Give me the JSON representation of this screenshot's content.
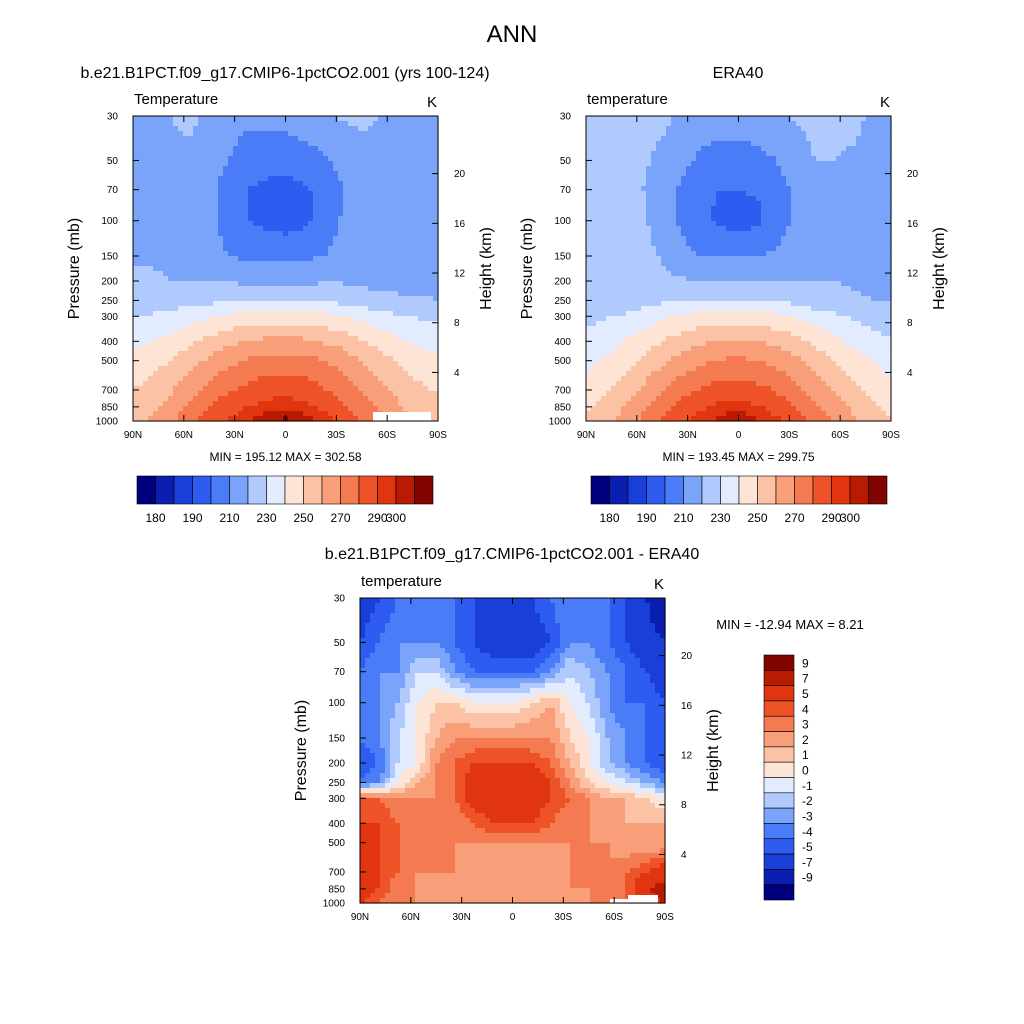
{
  "page_title": "ANN",
  "colors": {
    "temp_palette": [
      "#00007f",
      "#0a1fb0",
      "#1a3fd9",
      "#2e5bf0",
      "#4a7cf7",
      "#7aa3fa",
      "#b1cafd",
      "#e2ecfe",
      "#fde4d4",
      "#fbc2a5",
      "#f89e78",
      "#f47a52",
      "#ee5327",
      "#e0350e",
      "#b81b02",
      "#820400"
    ],
    "diff_palette": [
      "#00007f",
      "#0a1fb0",
      "#1a3fd9",
      "#2e5bf0",
      "#4a7cf7",
      "#7aa3fa",
      "#b1cafd",
      "#e2ecfe",
      "#fde4d4",
      "#fbc2a5",
      "#f89e78",
      "#f47a52",
      "#ee5327",
      "#e0350e",
      "#b81b02",
      "#820400"
    ]
  },
  "chart_data": [
    {
      "id": "model",
      "type": "heatmap",
      "title": "b.e21.B1PCT.f09_g17.CMIP6-1pctCO2.001 (yrs 100-124)",
      "left_label": "Temperature",
      "units": "K",
      "ylabel": "Pressure (mb)",
      "ylabel_right": "Height (km)",
      "xticks": [
        "90N",
        "60N",
        "30N",
        "0",
        "30S",
        "60S",
        "90S"
      ],
      "yticks": [
        "30",
        "50",
        "70",
        "100",
        "150",
        "200",
        "250",
        "300",
        "400",
        "500",
        "700",
        "850",
        "1000"
      ],
      "yticks_right": [
        "20",
        "16",
        "12",
        "8",
        "4"
      ],
      "stats": "MIN = 195.12  MAX = 302.58",
      "levels": [
        180,
        185,
        190,
        200,
        210,
        220,
        230,
        240,
        250,
        260,
        270,
        280,
        290,
        295,
        300
      ],
      "colorbar_labels": [
        "180",
        "190",
        "210",
        "230",
        "250",
        "270",
        "290",
        "300"
      ],
      "min": 195.12,
      "max": 302.58,
      "grid": [
        [
          217,
          219,
          220,
          221,
          219,
          215,
          212,
          213,
          214,
          216,
          218,
          221,
          221,
          220,
          219,
          214,
          212
        ],
        [
          218,
          219,
          219,
          219,
          215,
          210,
          205,
          203,
          203,
          205,
          208,
          214,
          218,
          218,
          216,
          213,
          211
        ],
        [
          219,
          219,
          219,
          217,
          213,
          205,
          200,
          198,
          197,
          199,
          202,
          210,
          216,
          217,
          215,
          213,
          211
        ],
        [
          219,
          219,
          220,
          219,
          214,
          205,
          200,
          197,
          196,
          198,
          203,
          211,
          217,
          217,
          215,
          214,
          212
        ],
        [
          219,
          219,
          219,
          218,
          215,
          210,
          208,
          207,
          207,
          208,
          210,
          214,
          217,
          217,
          216,
          215,
          214
        ],
        [
          222,
          221,
          220,
          220,
          219,
          219,
          218,
          218,
          218,
          218,
          219,
          219,
          218,
          218,
          218,
          218,
          218
        ],
        [
          224,
          224,
          225,
          226,
          227,
          229,
          230,
          230,
          230,
          230,
          229,
          227,
          224,
          222,
          221,
          221,
          220
        ],
        [
          230,
          231,
          233,
          236,
          239,
          242,
          244,
          245,
          245,
          245,
          243,
          240,
          237,
          234,
          231,
          229,
          228
        ],
        [
          238,
          240,
          243,
          248,
          253,
          257,
          260,
          262,
          262,
          262,
          259,
          256,
          251,
          246,
          241,
          238,
          236
        ],
        [
          243,
          246,
          250,
          256,
          262,
          267,
          271,
          273,
          274,
          273,
          270,
          266,
          260,
          254,
          248,
          245,
          242
        ],
        [
          250,
          254,
          259,
          266,
          273,
          279,
          283,
          286,
          287,
          285,
          281,
          276,
          270,
          263,
          256,
          252,
          249
        ],
        [
          254,
          258,
          264,
          272,
          280,
          286,
          290,
          293,
          294,
          292,
          288,
          282,
          275,
          268,
          261,
          255,
          252
        ],
        [
          256,
          261,
          268,
          277,
          285,
          291,
          295,
          299,
          302,
          298,
          294,
          287,
          280,
          272,
          265,
          258,
          254
        ]
      ]
    },
    {
      "id": "obs",
      "type": "heatmap",
      "title": "ERA40",
      "left_label": "temperature",
      "units": "K",
      "ylabel": "Pressure (mb)",
      "ylabel_right": "Height (km)",
      "xticks": [
        "90N",
        "60N",
        "30N",
        "0",
        "30S",
        "60S",
        "90S"
      ],
      "yticks": [
        "30",
        "50",
        "70",
        "100",
        "150",
        "200",
        "250",
        "300",
        "400",
        "500",
        "700",
        "850",
        "1000"
      ],
      "yticks_right": [
        "20",
        "16",
        "12",
        "8",
        "4"
      ],
      "stats": "MIN = 193.45  MAX = 299.75",
      "levels": [
        180,
        185,
        190,
        200,
        210,
        220,
        230,
        240,
        250,
        260,
        270,
        280,
        290,
        295,
        300
      ],
      "colorbar_labels": [
        "180",
        "190",
        "210",
        "230",
        "250",
        "270",
        "290",
        "300"
      ],
      "min": 193.45,
      "max": 299.75,
      "grid": [
        [
          223,
          224,
          224,
          223,
          222,
          219,
          216,
          215,
          215,
          216,
          218,
          221,
          222,
          222,
          222,
          219,
          215
        ],
        [
          222,
          222,
          222,
          221,
          218,
          213,
          208,
          206,
          206,
          207,
          210,
          216,
          220,
          220,
          219,
          217,
          214
        ],
        [
          221,
          221,
          221,
          220,
          215,
          208,
          203,
          200,
          200,
          201,
          205,
          212,
          219,
          219,
          218,
          216,
          213
        ],
        [
          221,
          222,
          223,
          221,
          216,
          208,
          202,
          198,
          196,
          198,
          204,
          212,
          219,
          219,
          218,
          217,
          214
        ],
        [
          222,
          226,
          227,
          223,
          219,
          213,
          210,
          209,
          209,
          210,
          212,
          216,
          219,
          219,
          218,
          217,
          216
        ],
        [
          222,
          224,
          226,
          224,
          222,
          221,
          220,
          220,
          220,
          220,
          220,
          220,
          220,
          220,
          219,
          219,
          218
        ],
        [
          222,
          222,
          224,
          226,
          228,
          229,
          230,
          230,
          230,
          230,
          229,
          227,
          224,
          222,
          221,
          220,
          219
        ],
        [
          227,
          229,
          231,
          234,
          238,
          241,
          243,
          244,
          244,
          244,
          242,
          239,
          235,
          232,
          229,
          226,
          224
        ],
        [
          233,
          236,
          240,
          245,
          250,
          255,
          258,
          260,
          261,
          260,
          257,
          253,
          248,
          243,
          238,
          234,
          231
        ],
        [
          237,
          241,
          246,
          252,
          258,
          264,
          268,
          271,
          272,
          270,
          267,
          262,
          256,
          250,
          244,
          240,
          236
        ],
        [
          244,
          248,
          254,
          262,
          270,
          276,
          281,
          284,
          285,
          283,
          279,
          273,
          266,
          259,
          252,
          247,
          243
        ],
        [
          249,
          253,
          260,
          268,
          277,
          284,
          289,
          292,
          293,
          291,
          286,
          280,
          272,
          265,
          258,
          252,
          248
        ],
        [
          252,
          256,
          263,
          272,
          281,
          288,
          293,
          297,
          299,
          296,
          292,
          285,
          277,
          269,
          262,
          256,
          251
        ]
      ]
    },
    {
      "id": "diff",
      "type": "heatmap",
      "title": "b.e21.B1PCT.f09_g17.CMIP6-1pctCO2.001 - ERA40",
      "left_label": "temperature",
      "units": "K",
      "ylabel": "Pressure (mb)",
      "ylabel_right": "Height (km)",
      "xticks": [
        "90N",
        "60N",
        "30N",
        "0",
        "30S",
        "60S",
        "90S"
      ],
      "yticks": [
        "30",
        "50",
        "70",
        "100",
        "150",
        "200",
        "250",
        "300",
        "400",
        "500",
        "700",
        "850",
        "1000"
      ],
      "yticks_right": [
        "20",
        "16",
        "12",
        "8",
        "4"
      ],
      "stats": "MIN = -12.94  MAX =   8.21",
      "levels": [
        -9,
        -7,
        -5,
        -4,
        -3,
        -2,
        -1,
        0,
        1,
        2,
        3,
        4,
        5,
        7,
        9
      ],
      "colorbar_labels": [
        "9",
        "7",
        "5",
        "4",
        "3",
        "2",
        "1",
        "0",
        "-1",
        "-2",
        "-3",
        "-4",
        "-5",
        "-7",
        "-9"
      ],
      "min": -12.94,
      "max": 8.21,
      "grid": [
        [
          -6,
          -5,
          -4,
          -4,
          -3,
          -4,
          -5,
          -5,
          -5,
          -5,
          -4,
          -3,
          -4,
          -4,
          -5,
          -7,
          -9
        ],
        [
          -5,
          -4,
          -3,
          -3,
          -3,
          -4,
          -5,
          -6,
          -6,
          -6,
          -5,
          -3,
          -3,
          -4,
          -5,
          -6,
          -7
        ],
        [
          -4,
          -3,
          -3,
          -1,
          -1,
          -3,
          -4,
          -4,
          -4,
          -4,
          -3,
          -1,
          -2,
          -3,
          -4,
          -5,
          -6
        ],
        [
          -4,
          -3,
          -2,
          0,
          1,
          1,
          0,
          0,
          0,
          1,
          2,
          0,
          -1,
          -3,
          -4,
          -4,
          -5
        ],
        [
          -4,
          -3,
          -1,
          0,
          2,
          3,
          3,
          3,
          3,
          3,
          3,
          1,
          0,
          -2,
          -3,
          -4,
          -4
        ],
        [
          -5,
          -4,
          -1,
          0,
          3,
          4,
          5,
          5,
          5,
          5,
          4,
          2,
          0,
          -2,
          -3,
          -4,
          -5
        ],
        [
          -4,
          -3,
          0,
          2,
          3,
          4,
          6,
          6,
          6,
          6,
          5,
          3,
          1,
          0,
          -1,
          -2,
          -3
        ],
        [
          4,
          4,
          3,
          3,
          3,
          4,
          6,
          6,
          6,
          6,
          5,
          4,
          3,
          2,
          2,
          1,
          0
        ],
        [
          5,
          5,
          4,
          3,
          3,
          3,
          4,
          5,
          5,
          5,
          4,
          3,
          3,
          2,
          2,
          2,
          2
        ],
        [
          6,
          5,
          4,
          3,
          3,
          3,
          3,
          3,
          3,
          3,
          3,
          3,
          3,
          3,
          2,
          2,
          2
        ],
        [
          7,
          5,
          4,
          3,
          3,
          3,
          2,
          2,
          2,
          2,
          2,
          3,
          3,
          3,
          4,
          5,
          6
        ],
        [
          6,
          5,
          3,
          3,
          2,
          2,
          2,
          2,
          2,
          2,
          2,
          3,
          3,
          3,
          4,
          7,
          8
        ],
        [
          5,
          4,
          3,
          3,
          2,
          2,
          2,
          2,
          2,
          2,
          2,
          2,
          3,
          3,
          4,
          6,
          7
        ]
      ]
    }
  ]
}
